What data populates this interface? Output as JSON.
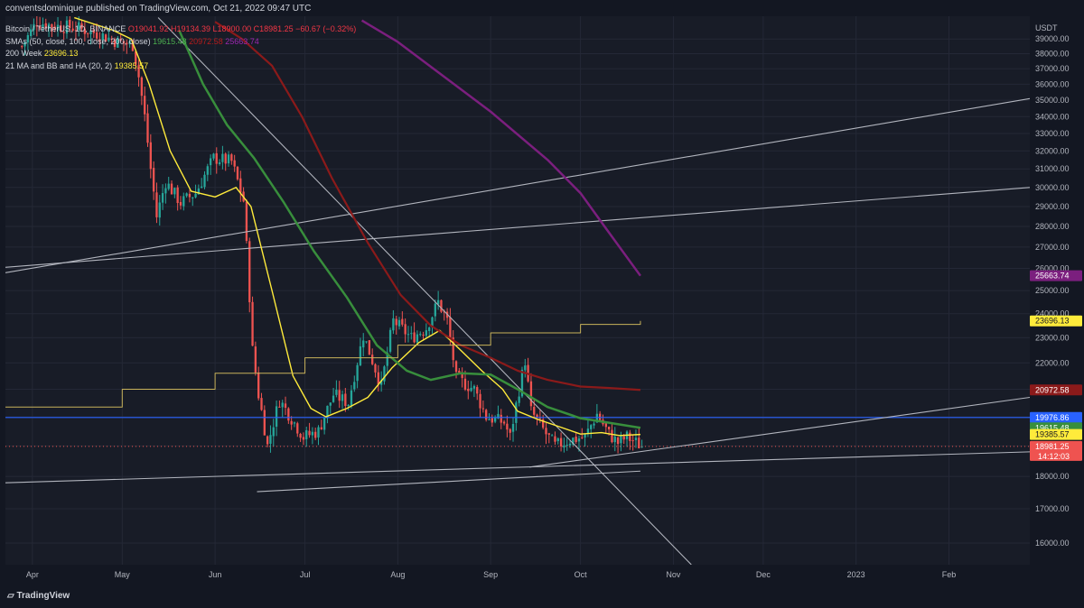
{
  "header": {
    "publish_line": "conventsdominique published on TradingView.com, Oct 21, 2022 09:47 UTC"
  },
  "legend": {
    "symbol": "Bitcoin / TetherUS, 1D, BINANCE",
    "open": "O19041.92",
    "high": "H19134.39",
    "low": "L18900.00",
    "close": "C18981.25",
    "change": "−60.67 (−0.32%)",
    "sma_label": "SMAs (50, close, 100, close, 200, close)",
    "sma50": "19615.48",
    "sma100": "20972.58",
    "sma200": "25663.74",
    "w200_label": "200 Week",
    "w200": "23696.13",
    "ma21_label": "21 MA and BB and HA (20, 2)",
    "ma21": "19385.57"
  },
  "price_axis": {
    "unit": "USDT"
  },
  "footer": {
    "logo_text": "TradingView"
  },
  "colors": {
    "up": "#26a69a",
    "down": "#ef5350",
    "ma21": "#ffeb3b",
    "sma50": "#388e3c",
    "sma100": "#8b1a1a",
    "sma200": "#7b1f7e",
    "w200": "#c8b25a",
    "hline": "#2962ff",
    "trend": "#b2b5be"
  },
  "chart_data": {
    "type": "candlestick",
    "title": "Bitcoin / TetherUS, 1D, BINANCE",
    "ylabel": "USDT",
    "yscale": "log",
    "ylim": [
      15400,
      40600
    ],
    "yticks": [
      16000,
      17000,
      18000,
      19000,
      20000,
      21000,
      22000,
      23000,
      24000,
      25000,
      26000,
      27000,
      28000,
      29000,
      30000,
      31000,
      32000,
      33000,
      34000,
      35000,
      36000,
      37000,
      38000,
      39000
    ],
    "x_range": [
      "2022-03-23",
      "2023-02-28"
    ],
    "x_ticks": [
      {
        "date": "2022-04-01",
        "label": "Apr"
      },
      {
        "date": "2022-05-01",
        "label": "May"
      },
      {
        "date": "2022-06-01",
        "label": "Jun"
      },
      {
        "date": "2022-07-01",
        "label": "Jul"
      },
      {
        "date": "2022-08-01",
        "label": "Aug"
      },
      {
        "date": "2022-09-01",
        "label": "Sep"
      },
      {
        "date": "2022-10-01",
        "label": "Oct"
      },
      {
        "date": "2022-11-01",
        "label": "Nov"
      },
      {
        "date": "2022-12-01",
        "label": "Dec"
      },
      {
        "date": "2023-01-01",
        "label": "2023"
      },
      {
        "date": "2023-02-01",
        "label": "Feb"
      }
    ],
    "close_path": [
      [
        "2022-03-28",
        38500
      ],
      [
        "2022-04-02",
        40200
      ],
      [
        "2022-04-08",
        39900
      ],
      [
        "2022-04-15",
        39800
      ],
      [
        "2022-04-22",
        39400
      ],
      [
        "2022-04-29",
        38800
      ],
      [
        "2022-05-04",
        38600
      ],
      [
        "2022-05-06",
        36500
      ],
      [
        "2022-05-08",
        34000
      ],
      [
        "2022-05-10",
        31000
      ],
      [
        "2022-05-12",
        28500
      ],
      [
        "2022-05-15",
        30300
      ],
      [
        "2022-05-20",
        29200
      ],
      [
        "2022-05-25",
        29700
      ],
      [
        "2022-05-31",
        31600
      ],
      [
        "2022-06-06",
        31400
      ],
      [
        "2022-06-10",
        29300
      ],
      [
        "2022-06-13",
        22500
      ],
      [
        "2022-06-15",
        20800
      ],
      [
        "2022-06-18",
        19000
      ],
      [
        "2022-06-22",
        20600
      ],
      [
        "2022-06-30",
        19300
      ],
      [
        "2022-07-05",
        19500
      ],
      [
        "2022-07-10",
        20800
      ],
      [
        "2022-07-15",
        20500
      ],
      [
        "2022-07-20",
        23100
      ],
      [
        "2022-07-26",
        21100
      ],
      [
        "2022-07-30",
        23700
      ],
      [
        "2022-08-05",
        23000
      ],
      [
        "2022-08-10",
        23400
      ],
      [
        "2022-08-14",
        24500
      ],
      [
        "2022-08-17",
        23700
      ],
      [
        "2022-08-20",
        21400
      ],
      [
        "2022-08-26",
        21000
      ],
      [
        "2022-08-30",
        20000
      ],
      [
        "2022-09-05",
        19800
      ],
      [
        "2022-09-07",
        19300
      ],
      [
        "2022-09-12",
        22100
      ],
      [
        "2022-09-14",
        20200
      ],
      [
        "2022-09-19",
        19400
      ],
      [
        "2022-09-22",
        19000
      ],
      [
        "2022-09-27",
        19200
      ],
      [
        "2022-10-02",
        19300
      ],
      [
        "2022-10-06",
        20100
      ],
      [
        "2022-10-10",
        19400
      ],
      [
        "2022-10-13",
        19100
      ],
      [
        "2022-10-16",
        19300
      ],
      [
        "2022-10-21",
        18981.25
      ]
    ],
    "series": [
      {
        "name": "21 MA",
        "key": "ma21",
        "values": [
          [
            "2022-04-15",
            40500
          ],
          [
            "2022-04-28",
            39600
          ],
          [
            "2022-05-04",
            39000
          ],
          [
            "2022-05-10",
            36000
          ],
          [
            "2022-05-17",
            32000
          ],
          [
            "2022-05-24",
            29800
          ],
          [
            "2022-06-01",
            29500
          ],
          [
            "2022-06-08",
            30000
          ],
          [
            "2022-06-13",
            29000
          ],
          [
            "2022-06-20",
            25000
          ],
          [
            "2022-06-27",
            21500
          ],
          [
            "2022-07-03",
            20300
          ],
          [
            "2022-07-08",
            20000
          ],
          [
            "2022-07-15",
            20300
          ],
          [
            "2022-07-22",
            20700
          ],
          [
            "2022-07-30",
            21800
          ],
          [
            "2022-08-08",
            22800
          ],
          [
            "2022-08-15",
            23300
          ],
          [
            "2022-08-22",
            22500
          ],
          [
            "2022-08-29",
            21700
          ],
          [
            "2022-09-05",
            21000
          ],
          [
            "2022-09-10",
            20200
          ],
          [
            "2022-09-17",
            19900
          ],
          [
            "2022-09-24",
            19650
          ],
          [
            "2022-10-01",
            19400
          ],
          [
            "2022-10-08",
            19450
          ],
          [
            "2022-10-14",
            19350
          ],
          [
            "2022-10-21",
            19386
          ]
        ]
      },
      {
        "name": "SMA 50",
        "key": "sma50",
        "values": [
          [
            "2022-05-20",
            39600
          ],
          [
            "2022-05-28",
            36000
          ],
          [
            "2022-06-05",
            33500
          ],
          [
            "2022-06-14",
            31600
          ],
          [
            "2022-06-24",
            29200
          ],
          [
            "2022-07-04",
            26800
          ],
          [
            "2022-07-15",
            24700
          ],
          [
            "2022-07-25",
            22700
          ],
          [
            "2022-08-04",
            21700
          ],
          [
            "2022-08-12",
            21350
          ],
          [
            "2022-08-22",
            21600
          ],
          [
            "2022-09-01",
            21550
          ],
          [
            "2022-09-10",
            21000
          ],
          [
            "2022-09-20",
            20350
          ],
          [
            "2022-10-01",
            19950
          ],
          [
            "2022-10-10",
            19800
          ],
          [
            "2022-10-21",
            19615
          ]
        ]
      },
      {
        "name": "SMA 100",
        "key": "sma100",
        "values": [
          [
            "2022-06-01",
            40200
          ],
          [
            "2022-06-10",
            39000
          ],
          [
            "2022-06-20",
            37200
          ],
          [
            "2022-06-30",
            34000
          ],
          [
            "2022-07-10",
            30500
          ],
          [
            "2022-07-22",
            27200
          ],
          [
            "2022-08-02",
            24800
          ],
          [
            "2022-08-12",
            23500
          ],
          [
            "2022-08-22",
            22700
          ],
          [
            "2022-09-01",
            22200
          ],
          [
            "2022-09-10",
            21700
          ],
          [
            "2022-09-20",
            21350
          ],
          [
            "2022-10-01",
            21100
          ],
          [
            "2022-10-10",
            21050
          ],
          [
            "2022-10-21",
            20973
          ]
        ]
      },
      {
        "name": "SMA 200",
        "key": "sma200",
        "values": [
          [
            "2022-07-20",
            40300
          ],
          [
            "2022-08-01",
            38800
          ],
          [
            "2022-08-15",
            36700
          ],
          [
            "2022-09-01",
            34300
          ],
          [
            "2022-09-20",
            31500
          ],
          [
            "2022-10-01",
            29700
          ],
          [
            "2022-10-10",
            27800
          ],
          [
            "2022-10-21",
            25664
          ]
        ]
      },
      {
        "name": "200 Week",
        "key": "w200",
        "values": [
          [
            "2022-03-23",
            20350
          ],
          [
            "2022-05-01",
            21000
          ],
          [
            "2022-06-01",
            21600
          ],
          [
            "2022-07-01",
            22200
          ],
          [
            "2022-08-01",
            22700
          ],
          [
            "2022-09-01",
            23200
          ],
          [
            "2022-10-01",
            23550
          ],
          [
            "2022-10-21",
            23696
          ]
        ]
      }
    ],
    "hlines": [
      {
        "price": 19976.86,
        "label": "19976.86"
      }
    ],
    "trendlines": [
      {
        "from": [
          "2022-03-23",
          17800
        ],
        "to": [
          "2023-02-28",
          18800
        ]
      },
      {
        "from": [
          "2022-03-23",
          25800
        ],
        "to": [
          "2023-02-28",
          35100
        ]
      },
      {
        "from": [
          "2022-03-23",
          26050
        ],
        "to": [
          "2023-02-28",
          30000
        ]
      },
      {
        "from": [
          "2022-05-13",
          40500
        ],
        "to": [
          "2022-11-07",
          15400
        ]
      },
      {
        "from": [
          "2022-06-15",
          17520
        ],
        "to": [
          "2022-10-21",
          18170
        ]
      },
      {
        "from": [
          "2022-09-14",
          18300
        ],
        "to": [
          "2023-02-28",
          20700
        ]
      }
    ],
    "price_labels": [
      {
        "price": 25663.74,
        "text": "25663.74",
        "bg": "#7b1f7e",
        "fg": "#ffffff"
      },
      {
        "price": 23696.13,
        "text": "23696.13",
        "bg": "#ffeb3b",
        "fg": "#131722"
      },
      {
        "price": 20972.58,
        "text": "20972.58",
        "bg": "#8b1a1a",
        "fg": "#ffffff"
      },
      {
        "price": 19976.86,
        "text": "19976.86",
        "bg": "#2962ff",
        "fg": "#ffffff"
      },
      {
        "price": 19615.48,
        "text": "19615.48",
        "bg": "#388e3c",
        "fg": "#ffffff"
      },
      {
        "price": 19385.57,
        "text": "19385.57",
        "bg": "#ffeb3b",
        "fg": "#131722"
      },
      {
        "price": 18981.25,
        "text": "18981.25",
        "bg": "#ef5350",
        "fg": "#ffffff"
      }
    ],
    "countdown": "14:12:03"
  }
}
